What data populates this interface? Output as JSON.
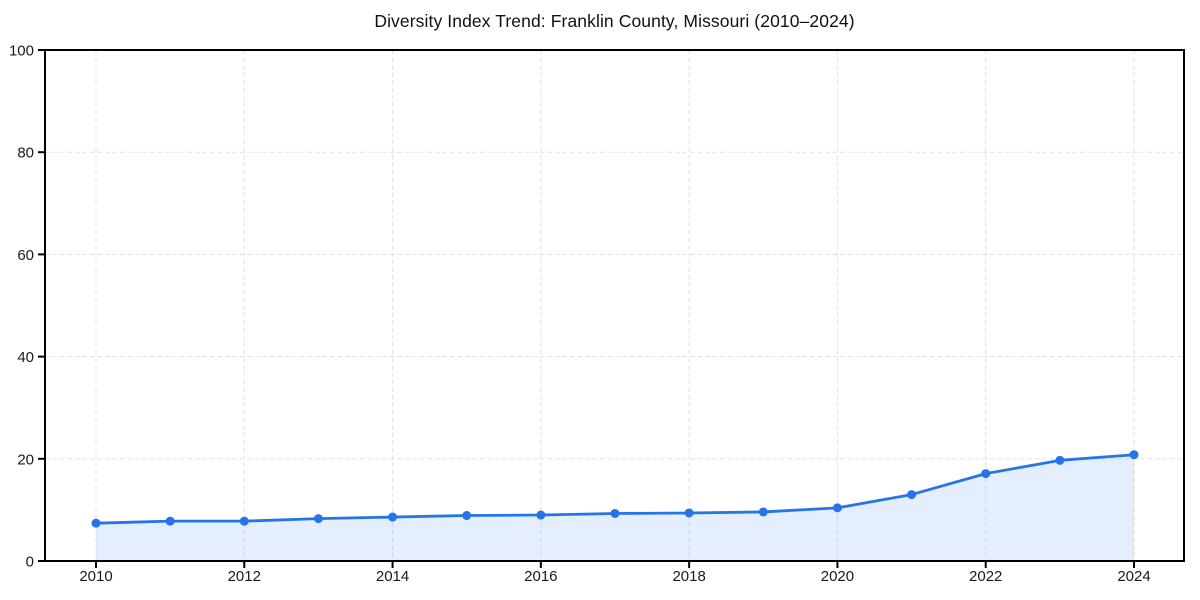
{
  "page": {
    "background": "#ffffff"
  },
  "chart_data": {
    "type": "area",
    "title": "Diversity Index Trend: Franklin County, Missouri (2010–2024)",
    "series_name": "Diversity Index",
    "x": [
      2010,
      2011,
      2012,
      2013,
      2014,
      2015,
      2016,
      2017,
      2018,
      2019,
      2020,
      2021,
      2022,
      2023,
      2024
    ],
    "values": [
      7.4,
      7.8,
      7.8,
      8.3,
      8.6,
      8.9,
      9.0,
      9.3,
      9.4,
      9.6,
      10.4,
      13.0,
      17.1,
      19.7,
      20.8
    ],
    "xlabel": "",
    "ylabel": "",
    "ylim": [
      0,
      100
    ],
    "xlim": [
      2009.3,
      2024.7
    ],
    "y_ticks": [
      0,
      20,
      40,
      60,
      80,
      100
    ],
    "x_ticks": [
      2010,
      2012,
      2014,
      2016,
      2018,
      2020,
      2022,
      2024
    ],
    "grid": "dashed",
    "legend": "none",
    "marker": "circle",
    "marker_radius": 4.5,
    "line_width": 2.8,
    "colors": {
      "line": "#2575e8",
      "marker": "#2575e8",
      "fill": "#2575e8",
      "fill_opacity": 0.12,
      "grid": "#e1e1e1",
      "axis": "#000000",
      "tick_text": "#1a1a1a",
      "title_text": "#111111",
      "background": "#ffffff"
    }
  }
}
